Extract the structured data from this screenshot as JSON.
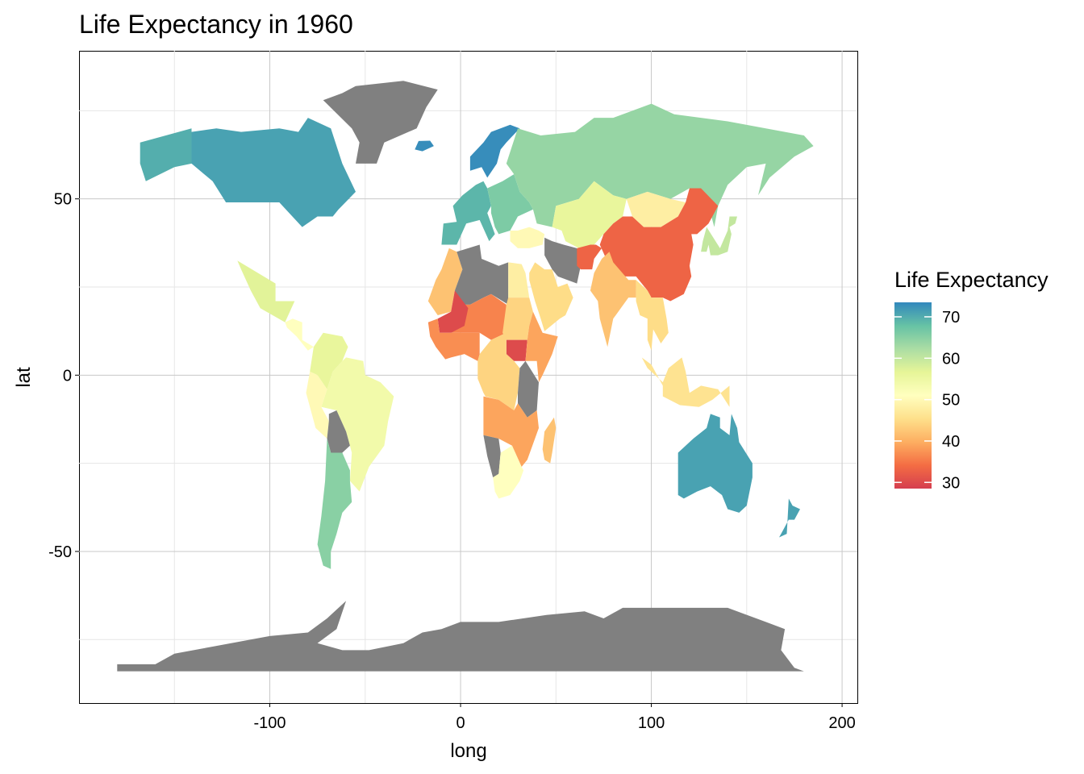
{
  "chart_data": {
    "type": "choropleth",
    "title": "Life Expectancy in 1960",
    "xlabel": "long",
    "ylabel": "lat",
    "xlim": [
      -200,
      208
    ],
    "ylim": [
      -93,
      92
    ],
    "x_ticks": [
      -100,
      0,
      100,
      200
    ],
    "x_tick_labels": [
      "-100",
      "0",
      "100",
      "200"
    ],
    "y_ticks": [
      -50,
      0,
      50
    ],
    "y_tick_labels": [
      "-50",
      "0",
      "50"
    ],
    "grid": true,
    "legend": {
      "title": "Life Expectancy",
      "position": "right",
      "min": 28.5,
      "max": 73.5,
      "ticks": [
        70,
        60,
        50,
        40,
        30
      ],
      "tick_labels": [
        "70",
        "60",
        "50",
        "40",
        "30"
      ],
      "palette": [
        "#D53E4F",
        "#F46D43",
        "#FDAE61",
        "#FEE08B",
        "#FFFFBF",
        "#E6F598",
        "#ABDDA4",
        "#66C2A5",
        "#3288BD"
      ]
    },
    "no_data_color": "#808080",
    "regions": [
      {
        "name": "Canada",
        "value": 71
      },
      {
        "name": "USA",
        "value": 69.8
      },
      {
        "name": "Mexico",
        "value": 57
      },
      {
        "name": "Central America",
        "value": 51
      },
      {
        "name": "Venezuela & Colombia",
        "value": 56
      },
      {
        "name": "Brazil",
        "value": 54
      },
      {
        "name": "Andean Coast",
        "value": 50
      },
      {
        "name": "Bolivia",
        "value": null
      },
      {
        "name": "Argentina",
        "value": 65
      },
      {
        "name": "Greenland",
        "value": null
      },
      {
        "name": "Iceland",
        "value": 73
      },
      {
        "name": "Scandinavia",
        "value": 73
      },
      {
        "name": "Western Europe",
        "value": 69
      },
      {
        "name": "Eastern Europe",
        "value": 66
      },
      {
        "name": "USSR",
        "value": 64
      },
      {
        "name": "Kazakhstan & Central Asia",
        "value": 56
      },
      {
        "name": "Mongolia",
        "value": 48
      },
      {
        "name": "China",
        "value": 33
      },
      {
        "name": "Korea & Japan",
        "value": 60
      },
      {
        "name": "Turkey",
        "value": 50
      },
      {
        "name": "Iran",
        "value": null
      },
      {
        "name": "Afghanistan",
        "value": 33
      },
      {
        "name": "Arabian Peninsula",
        "value": 45
      },
      {
        "name": "India",
        "value": 42
      },
      {
        "name": "Myanmar & Thailand",
        "value": 45
      },
      {
        "name": "Indonesia",
        "value": 46
      },
      {
        "name": "Australia",
        "value": 71
      },
      {
        "name": "New Zealand",
        "value": 71
      },
      {
        "name": "North-West Africa",
        "value": 42
      },
      {
        "name": "Libya & Algeria",
        "value": null
      },
      {
        "name": "Egypt",
        "value": 48
      },
      {
        "name": "Sahel",
        "value": 36
      },
      {
        "name": "Mali",
        "value": 30
      },
      {
        "name": "West Africa Coast",
        "value": 37
      },
      {
        "name": "Sudan",
        "value": 44
      },
      {
        "name": "South Sudan",
        "value": 30
      },
      {
        "name": "Horn of Africa",
        "value": 39
      },
      {
        "name": "Central Africa",
        "value": 44
      },
      {
        "name": "East Africa",
        "value": null
      },
      {
        "name": "Angola & Zambia",
        "value": 39
      },
      {
        "name": "Namibia",
        "value": null
      },
      {
        "name": "Southern Africa",
        "value": 51
      },
      {
        "name": "Madagascar",
        "value": 42
      },
      {
        "name": "Antarctica",
        "value": null
      }
    ]
  }
}
